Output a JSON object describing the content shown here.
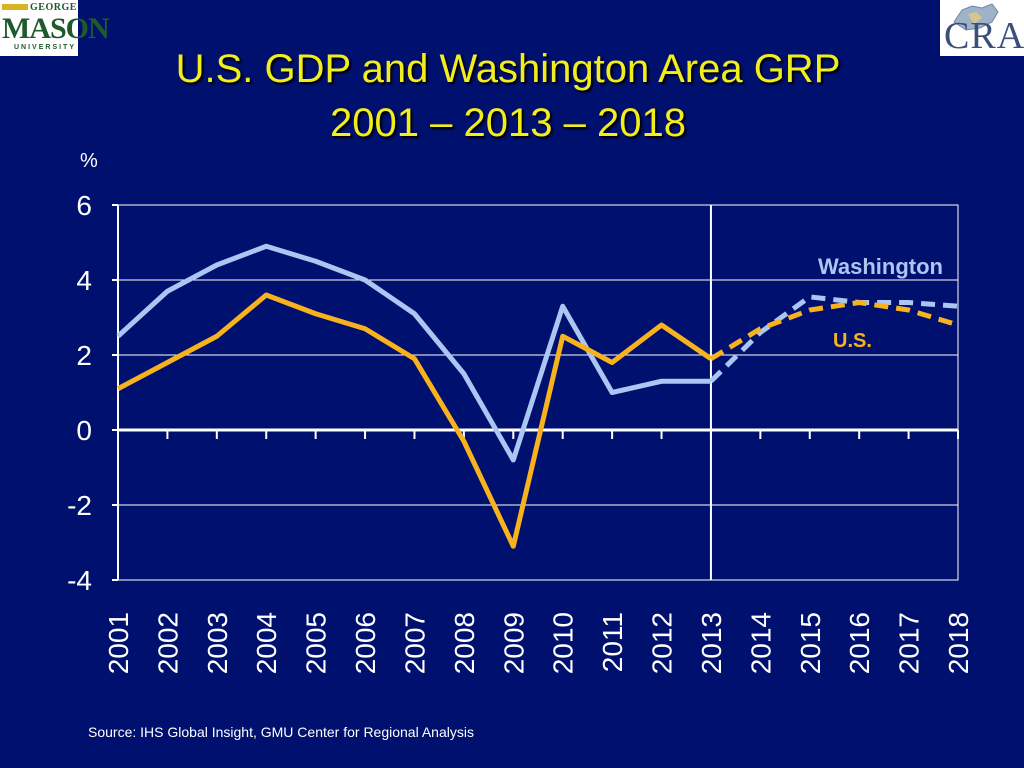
{
  "logos": {
    "left": {
      "line1": "GEORGE",
      "line2": "MASON",
      "line3": "UNIVERSITY"
    },
    "right": {
      "text": "CRA"
    }
  },
  "title": {
    "line1": "U.S. GDP and Washington Area GRP",
    "line2": "2001 – 2013 – 2018"
  },
  "source": "Source: IHS Global Insight, GMU Center for Regional Analysis",
  "colors": {
    "background": "#00106e",
    "title": "#f2ee1d",
    "washington": "#a9c7f2",
    "us": "#f7b21e",
    "axis": "#ffffff"
  },
  "chart_data": {
    "type": "line",
    "ylabel": "%",
    "ylim": [
      -4,
      6
    ],
    "yticks": [
      6,
      4,
      2,
      0,
      -2,
      -4
    ],
    "x": [
      "2001",
      "2002",
      "2003",
      "2004",
      "2005",
      "2006",
      "2007",
      "2008",
      "2009",
      "2010",
      "2011",
      "2012",
      "2013",
      "2014",
      "2015",
      "2016",
      "2017",
      "2018"
    ],
    "forecast_start": "2013",
    "grid": true,
    "series": [
      {
        "name": "Washington",
        "color": "#a9c7f2",
        "values": [
          2.5,
          3.7,
          4.4,
          4.9,
          4.5,
          4.0,
          3.1,
          1.5,
          -0.8,
          3.3,
          1.0,
          1.3,
          1.3,
          2.6,
          3.55,
          3.4,
          3.4,
          3.3
        ]
      },
      {
        "name": "U.S.",
        "color": "#f7b21e",
        "values": [
          1.1,
          1.8,
          2.5,
          3.6,
          3.1,
          2.7,
          1.9,
          -0.3,
          -3.1,
          2.5,
          1.8,
          2.8,
          1.9,
          2.7,
          3.2,
          3.4,
          3.2,
          2.8
        ]
      }
    ]
  }
}
